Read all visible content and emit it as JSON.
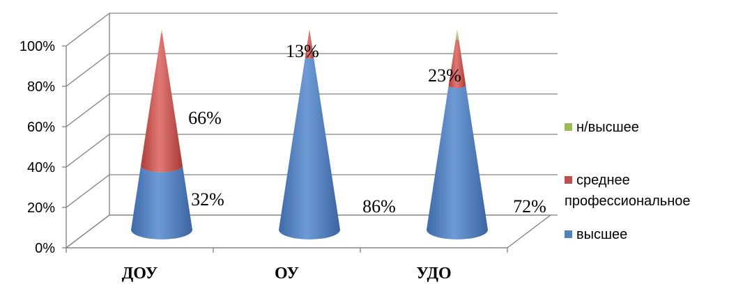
{
  "chart_data": {
    "type": "bar",
    "style": "3d-cone-stacked-percent",
    "categories": [
      "ДОУ",
      "ОУ",
      "УДО"
    ],
    "series": [
      {
        "name": "высшее",
        "color": "#4F81BD",
        "values": [
          32,
          86,
          72
        ]
      },
      {
        "name": "среднее профессиональное",
        "color": "#C0504D",
        "values": [
          66,
          13,
          23
        ]
      },
      {
        "name": "н/высшее",
        "color": "#9BBB59",
        "values": [
          2,
          1,
          5
        ]
      }
    ],
    "data_labels": {
      "высшее": [
        "32%",
        "86%",
        "72%"
      ],
      "среднее профессиональное": [
        "66%",
        "13%",
        "23%"
      ]
    },
    "y_ticks": [
      "0%",
      "20%",
      "40%",
      "60%",
      "80%",
      "100%"
    ],
    "ylim": [
      0,
      100
    ],
    "grid": true,
    "legend_position": "right"
  },
  "legend": {
    "items": [
      {
        "label_lines": [
          "н/высшее"
        ],
        "color": "#9BBB59"
      },
      {
        "label_lines": [
          "среднее",
          "профессиональное"
        ],
        "color": "#C0504D"
      },
      {
        "label_lines": [
          "высшее"
        ],
        "color": "#4F81BD"
      }
    ]
  }
}
